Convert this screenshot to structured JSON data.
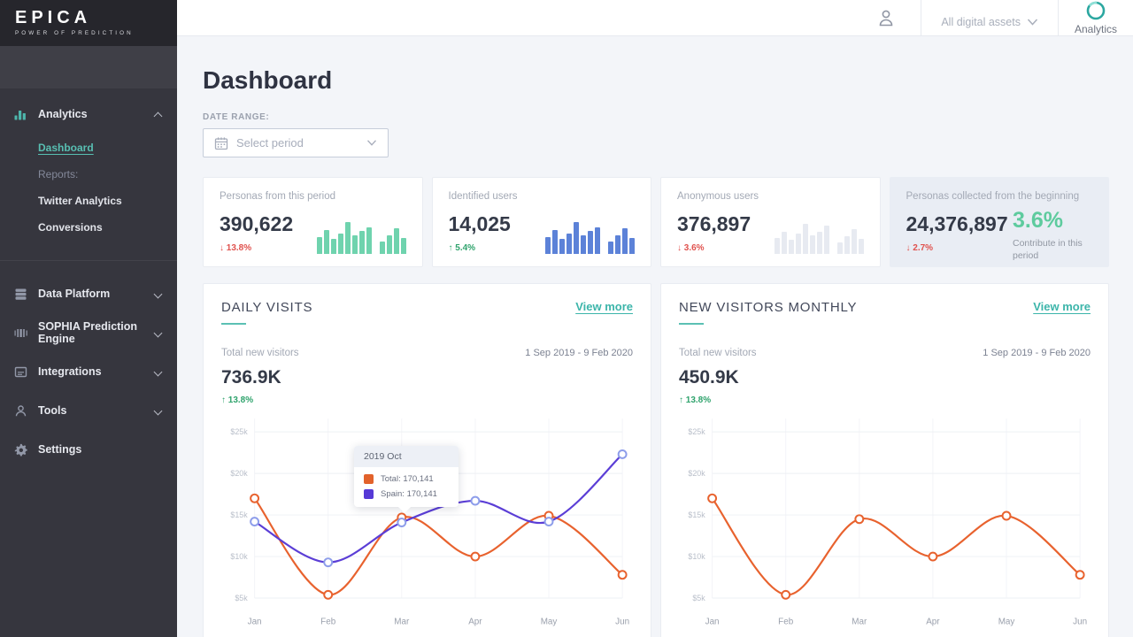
{
  "brand": {
    "logo_title": "EPICA",
    "logo_tagline": "POWER OF PREDICTION",
    "header_brand": "Analytics",
    "assets_dropdown": "All digital assets"
  },
  "sidebar": {
    "sections": [
      {
        "label": "Analytics",
        "icon": "bar-chart",
        "children": [
          {
            "label": "Dashboard"
          },
          {
            "label": "Reports:"
          },
          {
            "label": "Twitter Analytics"
          },
          {
            "label": "Conversions"
          }
        ]
      },
      {
        "label": "Data Platform",
        "icon": "database"
      },
      {
        "label": "SOPHIA Prediction Engine",
        "icon": "barcode"
      },
      {
        "label": "Integrations",
        "icon": "card"
      },
      {
        "label": "Tools",
        "icon": "person"
      },
      {
        "label": "Settings",
        "icon": "gear"
      }
    ]
  },
  "page": {
    "title": "Dashboard",
    "date_range_label": "DATE RANGE:",
    "date_range_placeholder": "Select period"
  },
  "stat_cards": [
    {
      "title": "Personas from this period",
      "value": "390,622",
      "delta": "13.8%",
      "direction": "down",
      "spark_color": "#6fd3ae",
      "spark": [
        42,
        58,
        36,
        50,
        78,
        46,
        56,
        66,
        null,
        30,
        46,
        62,
        40
      ]
    },
    {
      "title": "Identified users",
      "value": "14,025",
      "delta": "5.4%",
      "direction": "up",
      "spark_color": "#5c82d8",
      "spark": [
        42,
        58,
        36,
        50,
        78,
        46,
        56,
        66,
        null,
        30,
        46,
        62,
        40
      ]
    },
    {
      "title": "Anonymous users",
      "value": "376,897",
      "delta": "3.6%",
      "direction": "down",
      "spark_color": "#e7eaf1",
      "spark": [
        40,
        55,
        35,
        50,
        75,
        45,
        55,
        70,
        null,
        28,
        44,
        60,
        38
      ]
    },
    {
      "title": "Personas collected from the beginning",
      "value": "24,376,897",
      "delta": "2.7%",
      "direction": "down",
      "highlight_value": "3.6%",
      "highlight_caption": "Contribute in this period"
    }
  ],
  "chart_cards": [
    {
      "title": "DAILY VISITS",
      "link": "View more",
      "stat_label": "Total new visitors",
      "stat_value": "736.9K",
      "delta": "13.8%",
      "direction": "up",
      "date_range": "1 Sep 2019 - 9 Feb 2020"
    },
    {
      "title": "NEW VISITORS MONTHLY",
      "link": "View more",
      "stat_label": "Total new visitors",
      "stat_value": "450.9K",
      "delta": "13.8%",
      "direction": "up",
      "date_range": "1 Sep 2019 - 9 Feb 2020"
    }
  ],
  "chart_data": [
    {
      "type": "line",
      "x": [
        "Jan",
        "Feb",
        "Mar",
        "Apr",
        "May",
        "Jun"
      ],
      "yticks": [
        {
          "label": "$25k",
          "value": 25000
        },
        {
          "label": "$20k",
          "value": 20000
        },
        {
          "label": "$15k",
          "value": 15000
        },
        {
          "label": "$10k",
          "value": 10000
        },
        {
          "label": "$5k",
          "value": 5000
        }
      ],
      "ylim": [
        5000,
        25000
      ],
      "grid": true,
      "series": [
        {
          "name": "Total",
          "color": "#e8622e",
          "marker": "#e8622e",
          "values": [
            17000,
            5400,
            14700,
            10000,
            14900,
            7800
          ]
        },
        {
          "name": "Spain",
          "color": "#5b3ed6",
          "marker": "#8d9dea",
          "values": [
            14200,
            9300,
            14100,
            16700,
            14200,
            22300
          ]
        }
      ],
      "tooltip": {
        "title": "2019 Oct",
        "rows": [
          {
            "text": "Total: 170,141",
            "color": "#e2622b"
          },
          {
            "text": "Spain: 170,141",
            "color": "#5639d6"
          }
        ]
      }
    },
    {
      "type": "line",
      "x": [
        "Jan",
        "Feb",
        "Mar",
        "Apr",
        "May",
        "Jun"
      ],
      "yticks": [
        {
          "label": "$25k",
          "value": 25000
        },
        {
          "label": "$20k",
          "value": 20000
        },
        {
          "label": "$15k",
          "value": 15000
        },
        {
          "label": "$10k",
          "value": 10000
        },
        {
          "label": "$5k",
          "value": 5000
        }
      ],
      "ylim": [
        5000,
        25000
      ],
      "grid": true,
      "series": [
        {
          "name": "Total",
          "color": "#e8622e",
          "marker": "#e8622e",
          "values": [
            17000,
            5400,
            14500,
            10000,
            14900,
            7800
          ]
        }
      ]
    }
  ],
  "colors": {
    "accent_teal": "#5bc0b4",
    "negative_red": "#e0524e",
    "positive_green": "#2fa36c",
    "sidebar_bg": "#36363e",
    "content_bg": "#f3f5f9"
  }
}
